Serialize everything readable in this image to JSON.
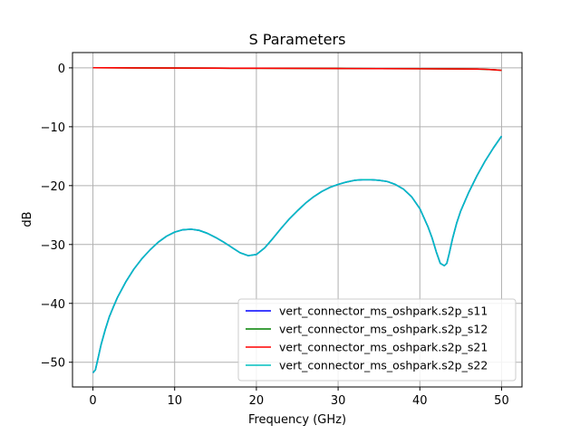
{
  "chart_data": {
    "type": "line",
    "title": "S Parameters",
    "xlabel": "Frequency (GHz)",
    "ylabel": "dB",
    "xlim": [
      -2.5,
      52.5
    ],
    "ylim": [
      -54.2,
      2.6
    ],
    "xticks": [
      0,
      10,
      20,
      30,
      40,
      50
    ],
    "yticks": [
      0,
      -10,
      -20,
      -30,
      -40,
      -50
    ],
    "xtick_labels": [
      "0",
      "10",
      "20",
      "30",
      "40",
      "50"
    ],
    "ytick_labels": [
      "0",
      "−10",
      "−20",
      "−30",
      "−40",
      "−50"
    ],
    "grid": true,
    "legend_position": "lower-right",
    "series": [
      {
        "name": "vert_connector_ms_oshpark.s2p_s11",
        "color": "#0000ff",
        "x": [
          0,
          0.3,
          0.6,
          1,
          1.5,
          2,
          2.5,
          3,
          4,
          5,
          6,
          7,
          8,
          9,
          10,
          11,
          12,
          13,
          14,
          15,
          16,
          17,
          18,
          19,
          20,
          21,
          22,
          23,
          24,
          25,
          26,
          27,
          28,
          29,
          30,
          31,
          32,
          33,
          34,
          35,
          36,
          37,
          38,
          39,
          40,
          41,
          41.5,
          42,
          42.5,
          43,
          43.3,
          43.6,
          44,
          44.5,
          45,
          46,
          47,
          48,
          49,
          50
        ],
        "y": [
          -51.8,
          -51.3,
          -49.5,
          -47,
          -44.5,
          -42.3,
          -40.6,
          -39,
          -36.4,
          -34.2,
          -32.4,
          -30.9,
          -29.6,
          -28.6,
          -27.9,
          -27.5,
          -27.4,
          -27.6,
          -28.1,
          -28.8,
          -29.6,
          -30.5,
          -31.4,
          -31.9,
          -31.7,
          -30.6,
          -29,
          -27.3,
          -25.7,
          -24.3,
          -23,
          -21.9,
          -21,
          -20.3,
          -19.8,
          -19.4,
          -19.1,
          -19.0,
          -19.0,
          -19.1,
          -19.3,
          -19.8,
          -20.6,
          -21.9,
          -23.9,
          -27,
          -28.9,
          -31.2,
          -33.2,
          -33.6,
          -33.2,
          -31.5,
          -29,
          -26.4,
          -24.3,
          -21.1,
          -18.3,
          -15.8,
          -13.6,
          -11.6
        ]
      },
      {
        "name": "vert_connector_ms_oshpark.s2p_s12",
        "color": "#008000",
        "x": [
          0,
          5,
          10,
          15,
          20,
          25,
          30,
          35,
          40,
          45,
          47,
          48,
          49,
          50
        ],
        "y": [
          0.02,
          0,
          -0.03,
          -0.05,
          -0.07,
          -0.09,
          -0.11,
          -0.13,
          -0.15,
          -0.18,
          -0.2,
          -0.25,
          -0.32,
          -0.42
        ]
      },
      {
        "name": "vert_connector_ms_oshpark.s2p_s21",
        "color": "#ff0000",
        "x": [
          0,
          5,
          10,
          15,
          20,
          25,
          30,
          35,
          40,
          45,
          47,
          48,
          49,
          50
        ],
        "y": [
          0.02,
          0,
          -0.03,
          -0.05,
          -0.07,
          -0.09,
          -0.11,
          -0.13,
          -0.15,
          -0.18,
          -0.2,
          -0.25,
          -0.32,
          -0.42
        ]
      },
      {
        "name": "vert_connector_ms_oshpark.s2p_s22",
        "color": "#00bfbf",
        "x": [
          0,
          0.3,
          0.6,
          1,
          1.5,
          2,
          2.5,
          3,
          4,
          5,
          6,
          7,
          8,
          9,
          10,
          11,
          12,
          13,
          14,
          15,
          16,
          17,
          18,
          19,
          20,
          21,
          22,
          23,
          24,
          25,
          26,
          27,
          28,
          29,
          30,
          31,
          32,
          33,
          34,
          35,
          36,
          37,
          38,
          39,
          40,
          41,
          41.5,
          42,
          42.5,
          43,
          43.3,
          43.6,
          44,
          44.5,
          45,
          46,
          47,
          48,
          49,
          50
        ],
        "y": [
          -51.8,
          -51.3,
          -49.5,
          -47,
          -44.5,
          -42.3,
          -40.6,
          -39,
          -36.4,
          -34.2,
          -32.4,
          -30.9,
          -29.6,
          -28.6,
          -27.9,
          -27.5,
          -27.4,
          -27.6,
          -28.1,
          -28.8,
          -29.6,
          -30.5,
          -31.4,
          -31.9,
          -31.7,
          -30.6,
          -29,
          -27.3,
          -25.7,
          -24.3,
          -23,
          -21.9,
          -21,
          -20.3,
          -19.8,
          -19.4,
          -19.1,
          -19.0,
          -19.0,
          -19.1,
          -19.3,
          -19.8,
          -20.6,
          -21.9,
          -23.9,
          -27,
          -28.9,
          -31.2,
          -33.2,
          -33.6,
          -33.2,
          -31.5,
          -29,
          -26.4,
          -24.3,
          -21.1,
          -18.3,
          -15.8,
          -13.6,
          -11.6
        ]
      }
    ]
  }
}
